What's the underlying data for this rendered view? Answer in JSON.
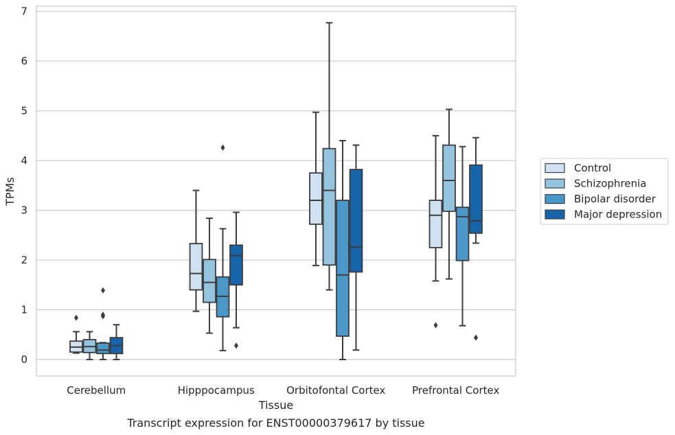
{
  "chart_data": {
    "type": "box",
    "caption": "Transcript expression for ENST00000379617 by tissue",
    "xlabel": "Tissue",
    "ylabel": "TPMs",
    "ylim": [
      -0.33,
      7.1
    ],
    "yticks": [
      0,
      1,
      2,
      3,
      4,
      5,
      6,
      7
    ],
    "grid": "horizontal",
    "legend_position": "right",
    "categories": [
      "Cerebellum",
      "Hipppocampus",
      "Orbitofontal Cortex",
      "Prefrontal Cortex"
    ],
    "series": [
      {
        "name": "Control",
        "color": "#d0e1f2",
        "boxes": [
          {
            "whisker_low": 0.13,
            "q1": 0.15,
            "median": 0.25,
            "q3": 0.37,
            "whisker_high": 0.56,
            "outliers": [
              0.84
            ]
          },
          {
            "whisker_low": 0.97,
            "q1": 1.4,
            "median": 1.73,
            "q3": 2.33,
            "whisker_high": 3.4,
            "outliers": []
          },
          {
            "whisker_low": 1.89,
            "q1": 2.72,
            "median": 3.2,
            "q3": 3.75,
            "whisker_high": 4.97,
            "outliers": []
          },
          {
            "whisker_low": 1.58,
            "q1": 2.25,
            "median": 2.9,
            "q3": 3.2,
            "whisker_high": 4.5,
            "outliers": [
              0.69
            ]
          }
        ]
      },
      {
        "name": "Schizophrenia",
        "color": "#94c4df",
        "boxes": [
          {
            "whisker_low": 0.0,
            "q1": 0.14,
            "median": 0.26,
            "q3": 0.4,
            "whisker_high": 0.56,
            "outliers": []
          },
          {
            "whisker_low": 0.53,
            "q1": 1.15,
            "median": 1.55,
            "q3": 2.01,
            "whisker_high": 2.84,
            "outliers": []
          },
          {
            "whisker_low": 1.4,
            "q1": 1.9,
            "median": 3.4,
            "q3": 4.24,
            "whisker_high": 6.77,
            "outliers": []
          },
          {
            "whisker_low": 1.62,
            "q1": 2.98,
            "median": 3.6,
            "q3": 4.31,
            "whisker_high": 5.03,
            "outliers": []
          }
        ]
      },
      {
        "name": "Bipolar disorder",
        "color": "#4a98c9",
        "boxes": [
          {
            "whisker_low": 0.0,
            "q1": 0.12,
            "median": 0.19,
            "q3": 0.33,
            "whisker_high": 0.34,
            "outliers": [
              0.87,
              0.9,
              1.39
            ]
          },
          {
            "whisker_low": 0.18,
            "q1": 0.86,
            "median": 1.27,
            "q3": 1.66,
            "whisker_high": 2.63,
            "outliers": [
              4.26
            ]
          },
          {
            "whisker_low": 0.0,
            "q1": 0.47,
            "median": 1.7,
            "q3": 3.2,
            "whisker_high": 4.4,
            "outliers": []
          },
          {
            "whisker_low": 0.68,
            "q1": 1.99,
            "median": 2.87,
            "q3": 3.06,
            "whisker_high": 4.28,
            "outliers": []
          }
        ]
      },
      {
        "name": "Major depression",
        "color": "#1764ab",
        "boxes": [
          {
            "whisker_low": 0.0,
            "q1": 0.12,
            "median": 0.28,
            "q3": 0.44,
            "whisker_high": 0.7,
            "outliers": []
          },
          {
            "whisker_low": 0.64,
            "q1": 1.5,
            "median": 2.09,
            "q3": 2.3,
            "whisker_high": 2.96,
            "outliers": [
              0.28
            ]
          },
          {
            "whisker_low": 0.19,
            "q1": 1.76,
            "median": 2.26,
            "q3": 3.82,
            "whisker_high": 4.31,
            "outliers": []
          },
          {
            "whisker_low": 2.34,
            "q1": 2.54,
            "median": 2.79,
            "q3": 3.91,
            "whisker_high": 4.46,
            "outliers": [
              0.44
            ]
          }
        ]
      }
    ]
  }
}
